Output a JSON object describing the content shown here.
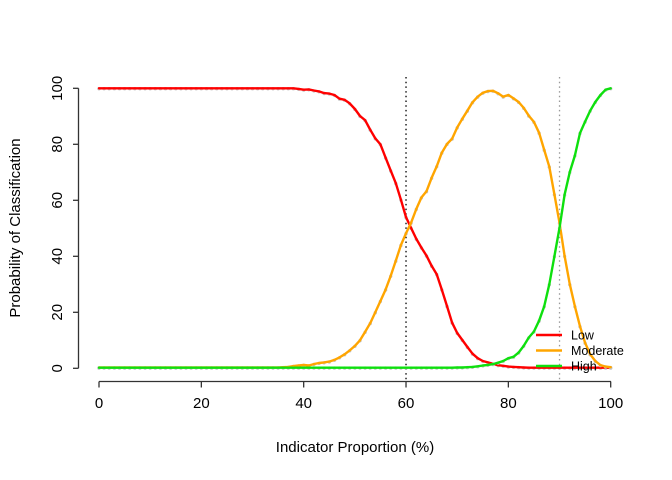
{
  "chart_data": {
    "type": "line",
    "title": "",
    "xlabel": "Indicator Proportion (%)",
    "ylabel": "Probability of Classification",
    "xlim": [
      0,
      100
    ],
    "ylim": [
      0,
      100
    ],
    "x_ticks": [
      0,
      20,
      40,
      60,
      80,
      100
    ],
    "y_ticks": [
      0,
      20,
      40,
      60,
      80,
      100
    ],
    "x_tick_labels": [
      "0",
      "20",
      "40",
      "60",
      "80",
      "100"
    ],
    "y_tick_labels": [
      "0",
      "20",
      "40",
      "60",
      "80",
      "100"
    ],
    "grid": false,
    "legend": {
      "position": "right-inside",
      "box": false
    },
    "marker_color": "#c4c4c4",
    "axis_color": "#333333",
    "x_start": 0,
    "x_step": 1,
    "ref_lines": [
      {
        "x": 60,
        "style": "dotted",
        "color": "#000000"
      },
      {
        "x": 90,
        "style": "dotted",
        "color": "#999999"
      }
    ],
    "series": [
      {
        "name": "Low",
        "color": "#ff0000",
        "values": [
          100,
          100,
          100,
          100,
          100,
          100,
          100,
          100,
          100,
          100,
          100,
          100,
          100,
          100,
          100,
          100,
          100,
          100,
          100,
          100,
          100,
          100,
          100,
          100,
          100,
          100,
          100,
          100,
          100,
          100,
          100,
          100,
          100,
          100,
          100,
          100,
          100,
          100,
          100,
          99.8,
          99.5,
          99.6,
          99.2,
          98.9,
          98.3,
          98.1,
          97.6,
          96.3,
          95.9,
          94.6,
          92.6,
          90.1,
          88.6,
          85.2,
          82.1,
          80,
          75.2,
          70.6,
          66.1,
          60.2,
          54,
          50.1,
          46.2,
          43.1,
          40.2,
          36.6,
          33.6,
          28.1,
          22.2,
          16.3,
          12.6,
          10.1,
          7.6,
          5.2,
          3.6,
          2.6,
          2.1,
          1.6,
          1.1,
          0.9,
          0.6,
          0.5,
          0.4,
          0.3,
          0.2,
          0.2,
          0.2,
          0.2,
          0.2,
          0.2,
          0.2,
          0.2,
          0.2,
          0.2,
          0.2,
          0.2,
          0.2,
          0.2,
          0.2,
          0.2,
          0.2
        ]
      },
      {
        "name": "Moderate",
        "color": "#ffa500",
        "values": [
          0.3,
          0.3,
          0.3,
          0.3,
          0.3,
          0.3,
          0.3,
          0.3,
          0.3,
          0.3,
          0.3,
          0.3,
          0.3,
          0.3,
          0.3,
          0.3,
          0.3,
          0.3,
          0.3,
          0.3,
          0.3,
          0.3,
          0.3,
          0.3,
          0.3,
          0.3,
          0.3,
          0.3,
          0.3,
          0.3,
          0.3,
          0.3,
          0.3,
          0.3,
          0.3,
          0.3,
          0.4,
          0.5,
          0.8,
          1,
          1.2,
          1,
          1.5,
          1.9,
          2.1,
          2.4,
          3,
          3.9,
          5,
          6.4,
          8,
          10,
          13,
          16.1,
          20,
          24,
          28.1,
          33,
          38.4,
          44,
          48.2,
          52,
          56.9,
          61,
          63.2,
          68,
          72.1,
          77,
          80.1,
          82,
          86,
          89.1,
          92,
          95,
          97,
          98.4,
          99,
          99.1,
          98.2,
          97,
          97.6,
          96.4,
          95.1,
          93,
          90.2,
          88,
          84.1,
          78,
          72,
          62.1,
          52,
          40.1,
          30,
          22.1,
          15,
          9.1,
          5,
          2.6,
          1.1,
          0.6,
          0.4
        ]
      },
      {
        "name": "High",
        "color": "#0ee00e",
        "values": [
          0.2,
          0.2,
          0.2,
          0.2,
          0.2,
          0.2,
          0.2,
          0.2,
          0.2,
          0.2,
          0.2,
          0.2,
          0.2,
          0.2,
          0.2,
          0.2,
          0.2,
          0.2,
          0.2,
          0.2,
          0.2,
          0.2,
          0.2,
          0.2,
          0.2,
          0.2,
          0.2,
          0.2,
          0.2,
          0.2,
          0.2,
          0.2,
          0.2,
          0.2,
          0.2,
          0.2,
          0.2,
          0.2,
          0.2,
          0.2,
          0.2,
          0.2,
          0.2,
          0.2,
          0.2,
          0.2,
          0.2,
          0.2,
          0.2,
          0.2,
          0.2,
          0.2,
          0.2,
          0.2,
          0.2,
          0.2,
          0.2,
          0.2,
          0.2,
          0.2,
          0.2,
          0.2,
          0.2,
          0.2,
          0.2,
          0.2,
          0.2,
          0.2,
          0.2,
          0.2,
          0.3,
          0.3,
          0.4,
          0.5,
          0.7,
          1,
          1.2,
          1.5,
          2,
          2.6,
          3.6,
          4.1,
          5.6,
          8,
          11,
          13.1,
          17,
          22.1,
          30,
          40,
          50.1,
          62,
          70.1,
          76,
          84,
          88.1,
          92,
          95.1,
          97.6,
          99.5,
          100
        ]
      }
    ]
  }
}
